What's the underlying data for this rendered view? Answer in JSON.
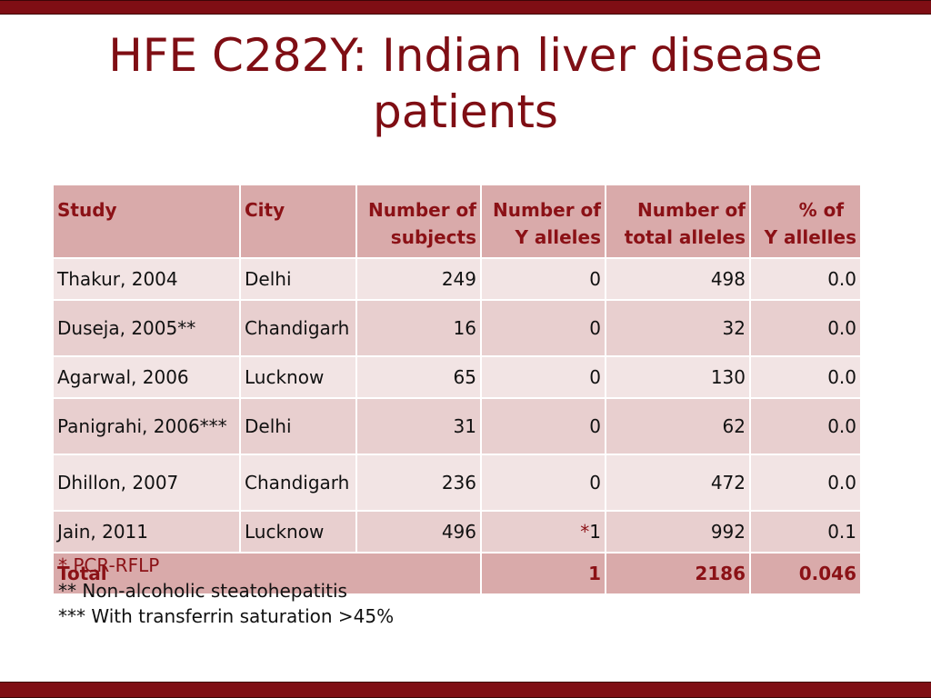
{
  "slide": {
    "title_line1": "HFE C282Y: Indian liver disease",
    "title_line2": "patients",
    "accent_color": "#7f0e14"
  },
  "table": {
    "headers": {
      "study": "Study",
      "city": "City",
      "subjects_1": "Number of",
      "subjects_2": "subjects",
      "yalleles_1": "Number of",
      "yalleles_2": "Y alleles",
      "total_1": "Number of",
      "total_2": "total alleles",
      "pct_1": "% of",
      "pct_2": "Y allelles"
    },
    "rows": [
      {
        "study": "Thakur, 2004",
        "city": "Delhi",
        "subjects": "249",
        "y_star": "",
        "y": "0",
        "total": "498",
        "pct": "0.0"
      },
      {
        "study": "Duseja, 2005**",
        "city": "Chandigarh",
        "subjects": "16",
        "y_star": "",
        "y": "0",
        "total": "32",
        "pct": "0.0"
      },
      {
        "study": "Agarwal, 2006",
        "city": "Lucknow",
        "subjects": "65",
        "y_star": "",
        "y": "0",
        "total": "130",
        "pct": "0.0"
      },
      {
        "study": "Panigrahi, 2006***",
        "city": "Delhi",
        "subjects": "31",
        "y_star": "",
        "y": "0",
        "total": "62",
        "pct": "0.0"
      },
      {
        "study": "Dhillon, 2007",
        "city": "Chandigarh",
        "subjects": "236",
        "y_star": "",
        "y": "0",
        "total": "472",
        "pct": "0.0"
      },
      {
        "study": "Jain, 2011",
        "city": "Lucknow",
        "subjects": "496",
        "y_star": "*",
        "y": "1",
        "total": "992",
        "pct": "0.1"
      }
    ],
    "total_row": {
      "label": "Total",
      "y": "1",
      "total": "2186",
      "pct": "0.046"
    }
  },
  "notes": {
    "n1": "* PCR-RFLP",
    "n2": "** Non-alcoholic steatohepatitis",
    "n3": "*** With transferrin saturation >45%"
  }
}
